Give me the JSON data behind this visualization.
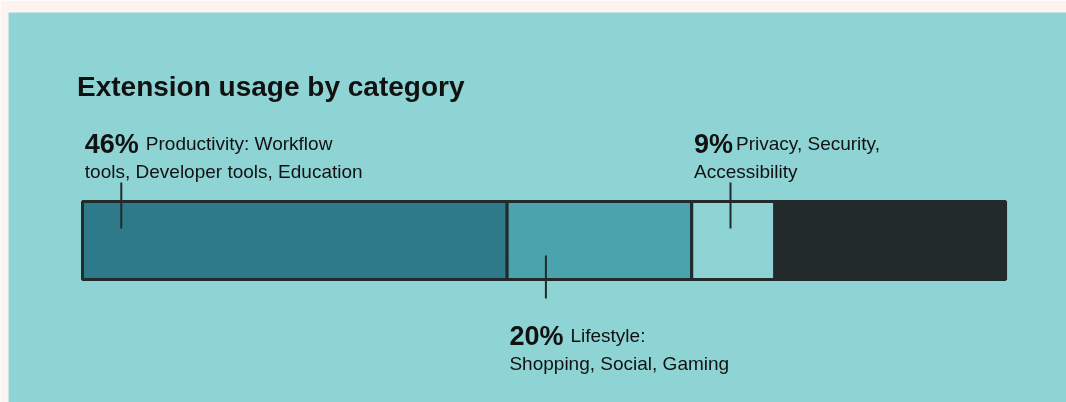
{
  "chart_data": {
    "type": "bar",
    "orientation": "horizontal",
    "stacked": true,
    "title": "Extension usage by category",
    "categories": [
      null
    ],
    "series": [
      {
        "name": "Productivity: Workflow tools, Developer tools, Education",
        "color": "#2f7a8a",
        "values": [
          46
        ],
        "value_labels": [
          "46%"
        ]
      },
      {
        "name": "Lifestyle: Shopping, Social, Gaming",
        "color": "#4aa3ad",
        "values": [
          20
        ],
        "value_labels": [
          "20%"
        ]
      },
      {
        "name": "Privacy, Security, Accessibility",
        "color": "#8fd4d4",
        "values": [
          9
        ],
        "value_labels": [
          "9%"
        ]
      },
      {
        "color": "#222a2c",
        "values": [
          25
        ]
      }
    ],
    "grid": false
  }
}
